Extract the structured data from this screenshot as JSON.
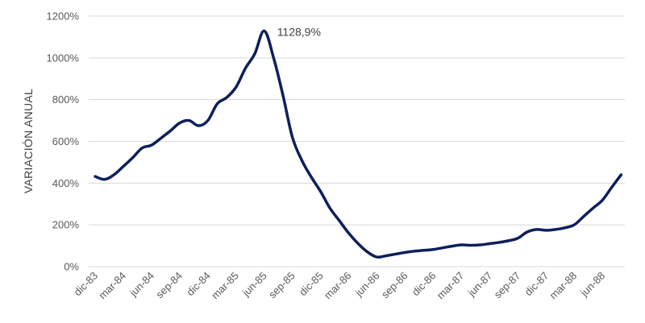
{
  "chart_data": {
    "type": "line",
    "title": "",
    "xlabel": "",
    "ylabel": "VARIACIÓN ANUAL",
    "ylim": [
      0,
      1200
    ],
    "y_ticks": [
      0,
      200,
      400,
      600,
      800,
      1000,
      1200
    ],
    "y_tick_suffix": "%",
    "x_tick_labels": [
      "dic-83",
      "mar-84",
      "jun-84",
      "sep-84",
      "dic-84",
      "mar-85",
      "jun-85",
      "sep-85",
      "dic-85",
      "mar-86",
      "jun-86",
      "sep-86",
      "dic-86",
      "mar-87",
      "jun-87",
      "sep-87",
      "dic-87",
      "mar-88",
      "jun-88"
    ],
    "grid": true,
    "legend": false,
    "line_color": "#0d1f5c",
    "x": [
      "dic-83",
      "ene-84",
      "feb-84",
      "mar-84",
      "abr-84",
      "may-84",
      "jun-84",
      "jul-84",
      "ago-84",
      "sep-84",
      "oct-84",
      "nov-84",
      "dic-84",
      "ene-85",
      "feb-85",
      "mar-85",
      "abr-85",
      "may-85",
      "jun-85",
      "jul-85",
      "ago-85",
      "sep-85",
      "oct-85",
      "nov-85",
      "dic-85",
      "ene-86",
      "feb-86",
      "mar-86",
      "abr-86",
      "may-86",
      "jun-86",
      "jul-86",
      "ago-86",
      "sep-86",
      "oct-86",
      "nov-86",
      "dic-86",
      "ene-87",
      "feb-87",
      "mar-87",
      "abr-87",
      "may-87",
      "jun-87",
      "jul-87",
      "ago-87",
      "sep-87",
      "oct-87",
      "nov-87",
      "dic-87",
      "ene-88",
      "feb-88",
      "mar-88",
      "abr-88",
      "may-88",
      "jun-88",
      "jul-88",
      "ago-88"
    ],
    "values": [
      432,
      418,
      440,
      480,
      522,
      568,
      582,
      615,
      650,
      688,
      700,
      675,
      700,
      780,
      810,
      860,
      950,
      1020,
      1128.9,
      1000,
      820,
      620,
      510,
      430,
      360,
      280,
      220,
      160,
      110,
      70,
      46,
      52,
      60,
      68,
      74,
      78,
      82,
      90,
      98,
      104,
      102,
      104,
      110,
      116,
      124,
      136,
      166,
      178,
      174,
      178,
      186,
      200,
      240,
      280,
      318,
      380,
      440
    ],
    "annotations": [
      {
        "x": "jun-85",
        "y": 1128.9,
        "text": "1128,9%"
      }
    ]
  }
}
